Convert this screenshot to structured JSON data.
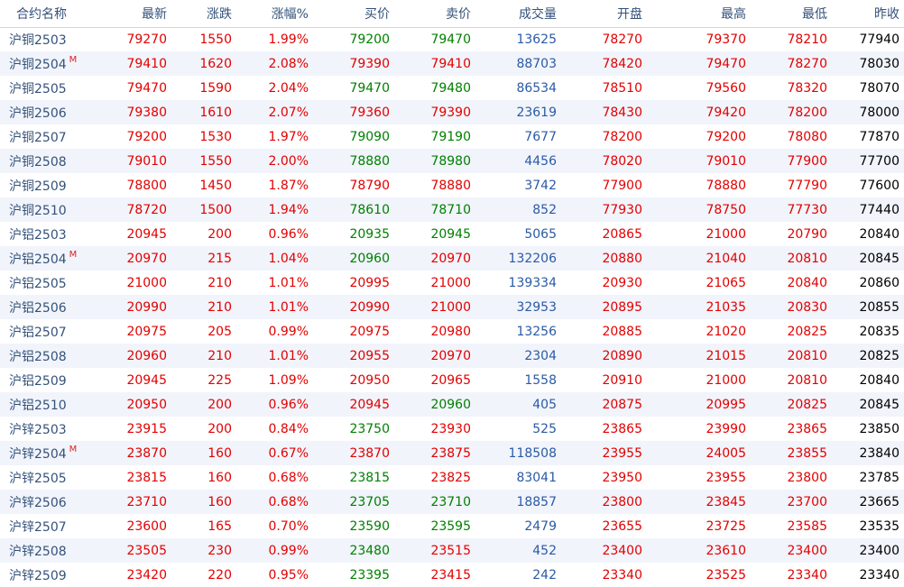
{
  "colors": {
    "up": "#e30000",
    "down": "#008000",
    "volume": "#2a5aa6",
    "header_text": "#34527a",
    "main_badge": "#e02020"
  },
  "columns": [
    "合约名称",
    "最新",
    "涨跌",
    "涨幅%",
    "买价",
    "卖价",
    "成交量",
    "开盘",
    "最高",
    "最低",
    "昨收"
  ],
  "rows": [
    {
      "name": "沪铜2503",
      "badge": "",
      "last": "79270",
      "change": "1550",
      "pct": "1.99%",
      "bid": "79200",
      "bid_dir": "down",
      "ask": "79470",
      "ask_dir": "down",
      "volume": "13625",
      "open": "78270",
      "high": "79370",
      "low": "78210",
      "prev": "77940"
    },
    {
      "name": "沪铜2504",
      "badge": "M",
      "last": "79410",
      "change": "1620",
      "pct": "2.08%",
      "bid": "79390",
      "bid_dir": "up",
      "ask": "79410",
      "ask_dir": "up",
      "volume": "88703",
      "open": "78420",
      "high": "79470",
      "low": "78270",
      "prev": "78030"
    },
    {
      "name": "沪铜2505",
      "badge": "",
      "last": "79470",
      "change": "1590",
      "pct": "2.04%",
      "bid": "79470",
      "bid_dir": "down",
      "ask": "79480",
      "ask_dir": "down",
      "volume": "86534",
      "open": "78510",
      "high": "79560",
      "low": "78320",
      "prev": "78070"
    },
    {
      "name": "沪铜2506",
      "badge": "",
      "last": "79380",
      "change": "1610",
      "pct": "2.07%",
      "bid": "79360",
      "bid_dir": "up",
      "ask": "79390",
      "ask_dir": "up",
      "volume": "23619",
      "open": "78430",
      "high": "79420",
      "low": "78200",
      "prev": "78000"
    },
    {
      "name": "沪铜2507",
      "badge": "",
      "last": "79200",
      "change": "1530",
      "pct": "1.97%",
      "bid": "79090",
      "bid_dir": "down",
      "ask": "79190",
      "ask_dir": "down",
      "volume": "7677",
      "open": "78200",
      "high": "79200",
      "low": "78080",
      "prev": "77870"
    },
    {
      "name": "沪铜2508",
      "badge": "",
      "last": "79010",
      "change": "1550",
      "pct": "2.00%",
      "bid": "78880",
      "bid_dir": "down",
      "ask": "78980",
      "ask_dir": "down",
      "volume": "4456",
      "open": "78020",
      "high": "79010",
      "low": "77900",
      "prev": "77700"
    },
    {
      "name": "沪铜2509",
      "badge": "",
      "last": "78800",
      "change": "1450",
      "pct": "1.87%",
      "bid": "78790",
      "bid_dir": "up",
      "ask": "78880",
      "ask_dir": "up",
      "volume": "3742",
      "open": "77900",
      "high": "78880",
      "low": "77790",
      "prev": "77600"
    },
    {
      "name": "沪铜2510",
      "badge": "",
      "last": "78720",
      "change": "1500",
      "pct": "1.94%",
      "bid": "78610",
      "bid_dir": "down",
      "ask": "78710",
      "ask_dir": "down",
      "volume": "852",
      "open": "77930",
      "high": "78750",
      "low": "77730",
      "prev": "77440"
    },
    {
      "name": "沪铝2503",
      "badge": "",
      "last": "20945",
      "change": "200",
      "pct": "0.96%",
      "bid": "20935",
      "bid_dir": "down",
      "ask": "20945",
      "ask_dir": "down",
      "volume": "5065",
      "open": "20865",
      "high": "21000",
      "low": "20790",
      "prev": "20840"
    },
    {
      "name": "沪铝2504",
      "badge": "M",
      "last": "20970",
      "change": "215",
      "pct": "1.04%",
      "bid": "20960",
      "bid_dir": "down",
      "ask": "20970",
      "ask_dir": "up",
      "volume": "132206",
      "open": "20880",
      "high": "21040",
      "low": "20810",
      "prev": "20845"
    },
    {
      "name": "沪铝2505",
      "badge": "",
      "last": "21000",
      "change": "210",
      "pct": "1.01%",
      "bid": "20995",
      "bid_dir": "up",
      "ask": "21000",
      "ask_dir": "up",
      "volume": "139334",
      "open": "20930",
      "high": "21065",
      "low": "20840",
      "prev": "20860"
    },
    {
      "name": "沪铝2506",
      "badge": "",
      "last": "20990",
      "change": "210",
      "pct": "1.01%",
      "bid": "20990",
      "bid_dir": "up",
      "ask": "21000",
      "ask_dir": "up",
      "volume": "32953",
      "open": "20895",
      "high": "21035",
      "low": "20830",
      "prev": "20855"
    },
    {
      "name": "沪铝2507",
      "badge": "",
      "last": "20975",
      "change": "205",
      "pct": "0.99%",
      "bid": "20975",
      "bid_dir": "up",
      "ask": "20980",
      "ask_dir": "up",
      "volume": "13256",
      "open": "20885",
      "high": "21020",
      "low": "20825",
      "prev": "20835"
    },
    {
      "name": "沪铝2508",
      "badge": "",
      "last": "20960",
      "change": "210",
      "pct": "1.01%",
      "bid": "20955",
      "bid_dir": "up",
      "ask": "20970",
      "ask_dir": "up",
      "volume": "2304",
      "open": "20890",
      "high": "21015",
      "low": "20810",
      "prev": "20825"
    },
    {
      "name": "沪铝2509",
      "badge": "",
      "last": "20945",
      "change": "225",
      "pct": "1.09%",
      "bid": "20950",
      "bid_dir": "up",
      "ask": "20965",
      "ask_dir": "up",
      "volume": "1558",
      "open": "20910",
      "high": "21000",
      "low": "20810",
      "prev": "20840"
    },
    {
      "name": "沪铝2510",
      "badge": "",
      "last": "20950",
      "change": "200",
      "pct": "0.96%",
      "bid": "20945",
      "bid_dir": "up",
      "ask": "20960",
      "ask_dir": "down",
      "volume": "405",
      "open": "20875",
      "high": "20995",
      "low": "20825",
      "prev": "20845"
    },
    {
      "name": "沪锌2503",
      "badge": "",
      "last": "23915",
      "change": "200",
      "pct": "0.84%",
      "bid": "23750",
      "bid_dir": "down",
      "ask": "23930",
      "ask_dir": "up",
      "volume": "525",
      "open": "23865",
      "high": "23990",
      "low": "23865",
      "prev": "23850"
    },
    {
      "name": "沪锌2504",
      "badge": "M",
      "last": "23870",
      "change": "160",
      "pct": "0.67%",
      "bid": "23870",
      "bid_dir": "up",
      "ask": "23875",
      "ask_dir": "up",
      "volume": "118508",
      "open": "23955",
      "high": "24005",
      "low": "23855",
      "prev": "23840"
    },
    {
      "name": "沪锌2505",
      "badge": "",
      "last": "23815",
      "change": "160",
      "pct": "0.68%",
      "bid": "23815",
      "bid_dir": "down",
      "ask": "23825",
      "ask_dir": "up",
      "volume": "83041",
      "open": "23950",
      "high": "23955",
      "low": "23800",
      "prev": "23785"
    },
    {
      "name": "沪锌2506",
      "badge": "",
      "last": "23710",
      "change": "160",
      "pct": "0.68%",
      "bid": "23705",
      "bid_dir": "down",
      "ask": "23710",
      "ask_dir": "down",
      "volume": "18857",
      "open": "23800",
      "high": "23845",
      "low": "23700",
      "prev": "23665"
    },
    {
      "name": "沪锌2507",
      "badge": "",
      "last": "23600",
      "change": "165",
      "pct": "0.70%",
      "bid": "23590",
      "bid_dir": "down",
      "ask": "23595",
      "ask_dir": "down",
      "volume": "2479",
      "open": "23655",
      "high": "23725",
      "low": "23585",
      "prev": "23535"
    },
    {
      "name": "沪锌2508",
      "badge": "",
      "last": "23505",
      "change": "230",
      "pct": "0.99%",
      "bid": "23480",
      "bid_dir": "down",
      "ask": "23515",
      "ask_dir": "up",
      "volume": "452",
      "open": "23400",
      "high": "23610",
      "low": "23400",
      "prev": "23400"
    },
    {
      "name": "沪锌2509",
      "badge": "",
      "last": "23420",
      "change": "220",
      "pct": "0.95%",
      "bid": "23395",
      "bid_dir": "down",
      "ask": "23415",
      "ask_dir": "up",
      "volume": "242",
      "open": "23340",
      "high": "23525",
      "low": "23340",
      "prev": "23340"
    }
  ]
}
